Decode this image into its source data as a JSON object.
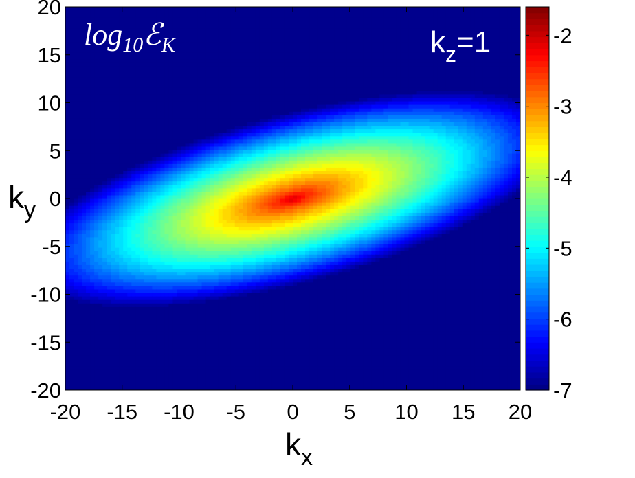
{
  "chart_data": {
    "type": "heatmap",
    "title": "log10EK",
    "title_parts": {
      "main": "log",
      "sub": "10",
      "symbol": "ℰ",
      "symbol_sub": "K"
    },
    "annotation": {
      "text": "k",
      "sub": "z",
      "suffix": "=1",
      "position": "top-right"
    },
    "xlabel": {
      "main": "k",
      "sub": "x"
    },
    "ylabel": {
      "main": "k",
      "sub": "y"
    },
    "xlim": [
      -20,
      20
    ],
    "ylim": [
      -20,
      20
    ],
    "x_ticks": [
      -20,
      -15,
      -10,
      -5,
      0,
      5,
      10,
      15,
      20
    ],
    "y_ticks": [
      -20,
      -15,
      -10,
      -5,
      0,
      5,
      10,
      15,
      20
    ],
    "x_tick_labels": [
      "-20",
      "-15",
      "-10",
      "-5",
      "0",
      "5",
      "10",
      "15",
      "20"
    ],
    "y_tick_labels": [
      "-20",
      "-15",
      "-10",
      "-5",
      "0",
      "5",
      "10",
      "15",
      "20"
    ],
    "colorbar": {
      "colormap": "jet",
      "range": [
        -7,
        -1.6
      ],
      "ticks": [
        -7,
        -6,
        -5,
        -4,
        -3,
        -2
      ],
      "tick_labels": [
        "-7",
        "-6",
        "-5",
        "-4",
        "-3",
        "-2"
      ],
      "position": "right"
    },
    "field": {
      "description_model": "elliptical peak tilted along kx-ky diagonal",
      "peak_value": -1.75,
      "peak_location": [
        0,
        0
      ],
      "tilt_degrees": 18,
      "background_value": -6.9
    },
    "grid": false
  }
}
